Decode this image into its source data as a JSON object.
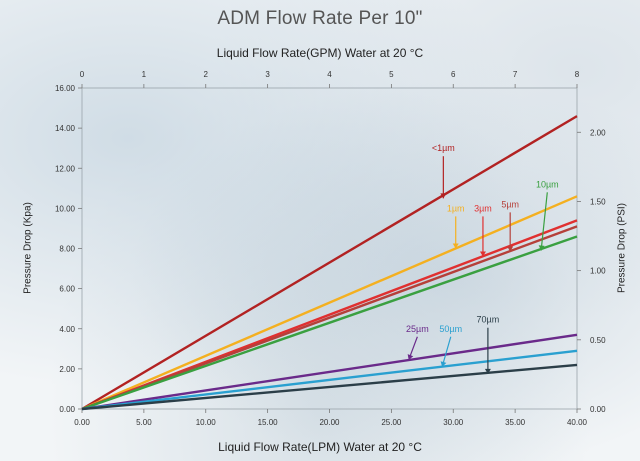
{
  "chart_data": {
    "type": "line",
    "title": "ADM Flow Rate Per 10\"",
    "x_top_label": "Liquid Flow Rate(GPM) Water at 20 °C",
    "xlabel": "Liquid Flow Rate(LPM) Water at 20 °C",
    "ylabel": "Pressure Drop  (Kpa)",
    "y_right_label": "Pressure Drop  (PSI)",
    "xlim": [
      0,
      40
    ],
    "ylim": [
      0,
      16
    ],
    "x_top_lim": [
      0,
      8
    ],
    "y_right_lim": [
      0,
      2.32
    ],
    "x_ticks": [
      "0.00",
      "5.00",
      "10.00",
      "15.00",
      "20.00",
      "25.00",
      "30.00",
      "35.00",
      "40.00"
    ],
    "y_ticks": [
      "0.00",
      "2.00",
      "4.00",
      "6.00",
      "8.00",
      "10.00",
      "12.00",
      "14.00",
      "16.00"
    ],
    "x_top_ticks": [
      "0",
      "1",
      "2",
      "3",
      "4",
      "5",
      "6",
      "7",
      "8"
    ],
    "y_right_ticks": [
      "0.00",
      "0.50",
      "1.00",
      "1.50",
      "2.00"
    ],
    "grid": false,
    "series": [
      {
        "name": "<1µm",
        "color": "#b22222",
        "x": [
          0,
          40
        ],
        "y": [
          0,
          14.6
        ],
        "label_x": 29.2,
        "label_y": 12.75,
        "arrow_tip_x": 29.2,
        "arrow_tip_y": 10.5
      },
      {
        "name": "1µm",
        "color": "#f4b020",
        "x": [
          0,
          40
        ],
        "y": [
          0,
          10.6
        ],
        "label_x": 30.2,
        "label_y": 9.75,
        "arrow_tip_x": 30.2,
        "arrow_tip_y": 8.0
      },
      {
        "name": "3µm",
        "color": "#e03030",
        "x": [
          0,
          40
        ],
        "y": [
          0,
          9.4
        ],
        "label_x": 32.4,
        "label_y": 9.75,
        "arrow_tip_x": 32.4,
        "arrow_tip_y": 7.6
      },
      {
        "name": "5µm",
        "color": "#b5403a",
        "x": [
          0,
          40
        ],
        "y": [
          0,
          9.1
        ],
        "label_x": 34.6,
        "label_y": 9.95,
        "arrow_tip_x": 34.6,
        "arrow_tip_y": 7.85
      },
      {
        "name": "10µm",
        "color": "#3aa040",
        "x": [
          0,
          40
        ],
        "y": [
          0,
          8.6
        ],
        "label_x": 37.6,
        "label_y": 10.95,
        "arrow_tip_x": 37.1,
        "arrow_tip_y": 7.9
      },
      {
        "name": "25µm",
        "color": "#6a2a8a",
        "x": [
          0,
          40
        ],
        "y": [
          0,
          3.7
        ],
        "label_x": 27.1,
        "label_y": 3.75,
        "arrow_tip_x": 26.4,
        "arrow_tip_y": 2.45
      },
      {
        "name": "50µm",
        "color": "#2aa0d0",
        "x": [
          0,
          40
        ],
        "y": [
          0,
          2.9
        ],
        "label_x": 29.8,
        "label_y": 3.75,
        "arrow_tip_x": 29.1,
        "arrow_tip_y": 2.1
      },
      {
        "name": "70µm",
        "color": "#2b3e48",
        "x": [
          0,
          40
        ],
        "y": [
          0,
          2.2
        ],
        "label_x": 32.8,
        "label_y": 4.2,
        "arrow_tip_x": 32.8,
        "arrow_tip_y": 1.75
      }
    ]
  }
}
